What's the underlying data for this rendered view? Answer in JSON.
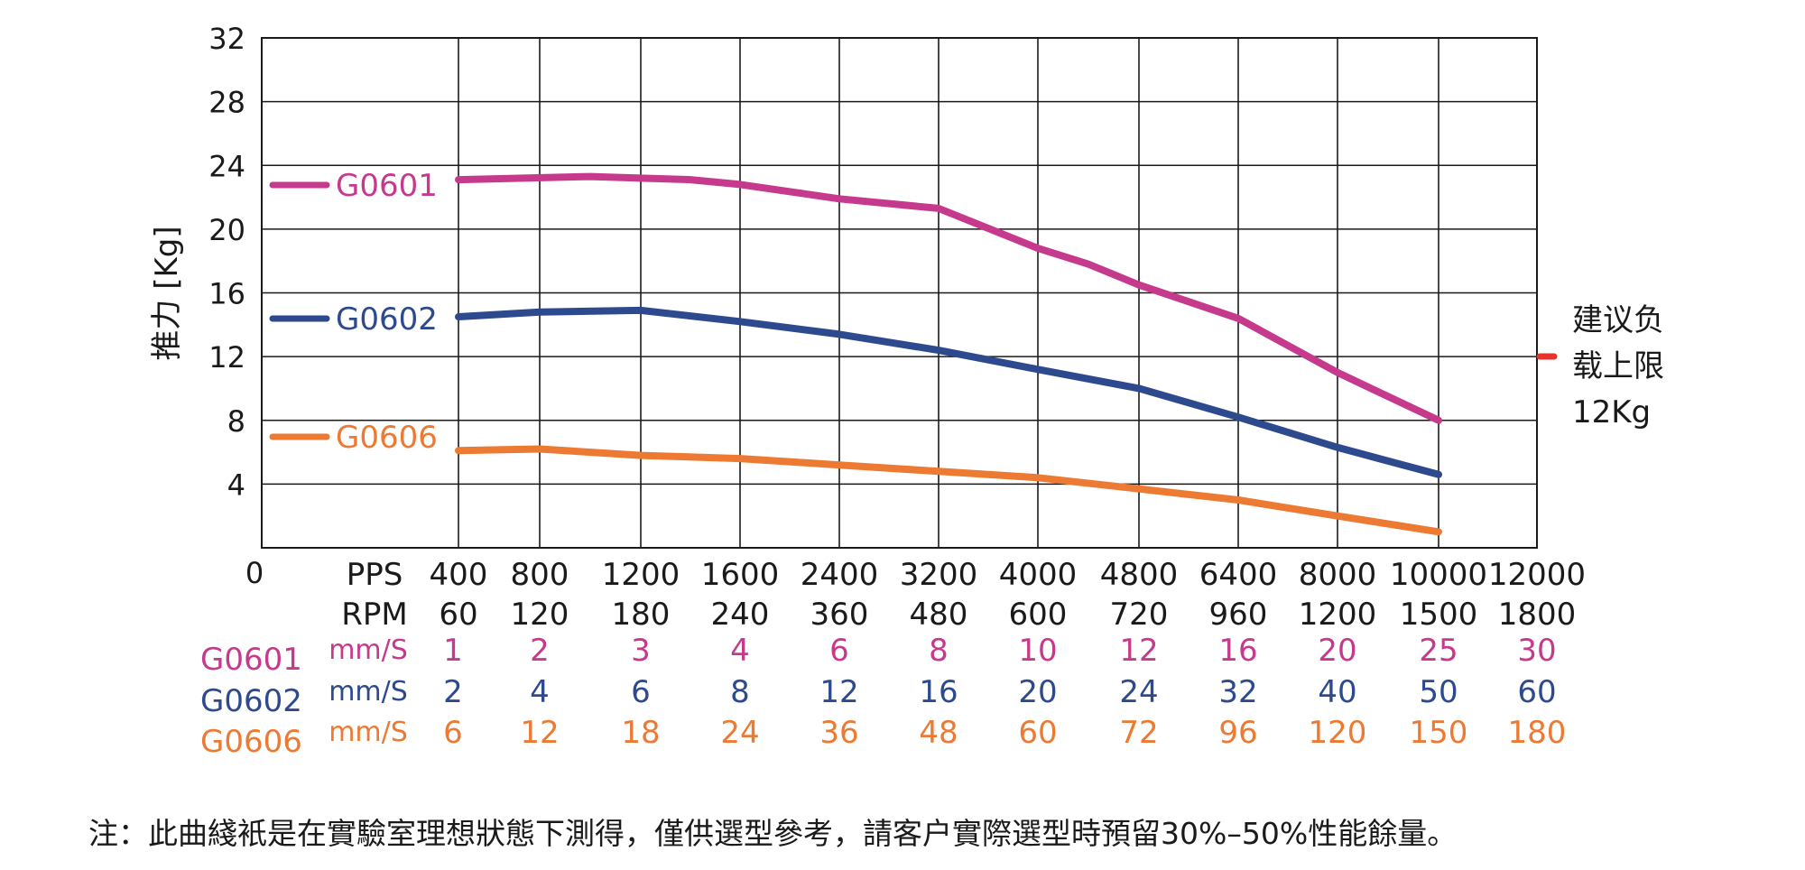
{
  "chart_data": {
    "type": "line",
    "ylabel": "推力 [Kg]",
    "ylim": [
      0,
      32
    ],
    "yticks": [
      "4",
      "8",
      "12",
      "16",
      "20",
      "24",
      "28",
      "32"
    ],
    "origin_label": "0",
    "grid": true,
    "x_pps": [
      "400",
      "800",
      "1200",
      "1600",
      "2400",
      "3200",
      "4000",
      "4800",
      "6400",
      "8000",
      "10000",
      "12000"
    ],
    "x_rpm": [
      "60",
      "120",
      "180",
      "240",
      "360",
      "480",
      "600",
      "720",
      "960",
      "1200",
      "1500",
      "1800"
    ],
    "pps_label": "PPS",
    "rpm_label": "RPM",
    "series": [
      {
        "name": "G0601",
        "color": "#C63A8E",
        "points": [
          [
            400,
            23.1
          ],
          [
            1000,
            23.3
          ],
          [
            1400,
            23.1
          ],
          [
            1600,
            22.8
          ],
          [
            2400,
            21.9
          ],
          [
            3200,
            21.3
          ],
          [
            4000,
            18.8
          ],
          [
            4400,
            17.8
          ],
          [
            4800,
            16.5
          ],
          [
            6400,
            14.4
          ],
          [
            8000,
            11.0
          ],
          [
            10000,
            8.0
          ]
        ],
        "unit": "mm/S",
        "speeds": [
          "1",
          "2",
          "3",
          "4",
          "6",
          "8",
          "10",
          "12",
          "16",
          "20",
          "25",
          "30"
        ]
      },
      {
        "name": "G0602",
        "color": "#2E4A8E",
        "points": [
          [
            400,
            14.5
          ],
          [
            800,
            14.8
          ],
          [
            1200,
            14.9
          ],
          [
            1600,
            14.2
          ],
          [
            2400,
            13.4
          ],
          [
            3200,
            12.4
          ],
          [
            4000,
            11.2
          ],
          [
            4800,
            10.0
          ],
          [
            6400,
            8.2
          ],
          [
            8000,
            6.3
          ],
          [
            10000,
            4.6
          ]
        ],
        "unit": "mm/S",
        "speeds": [
          "2",
          "4",
          "6",
          "8",
          "12",
          "16",
          "20",
          "24",
          "32",
          "40",
          "50",
          "60"
        ]
      },
      {
        "name": "G0606",
        "color": "#EC7A32",
        "points": [
          [
            400,
            6.1
          ],
          [
            800,
            6.2
          ],
          [
            1200,
            5.8
          ],
          [
            1600,
            5.6
          ],
          [
            2400,
            5.2
          ],
          [
            3200,
            4.8
          ],
          [
            4000,
            4.4
          ],
          [
            4800,
            3.7
          ],
          [
            6400,
            3.0
          ],
          [
            8000,
            2.0
          ],
          [
            10000,
            1.0
          ]
        ],
        "unit": "mm/S",
        "speeds": [
          "6",
          "12",
          "18",
          "24",
          "36",
          "48",
          "60",
          "72",
          "96",
          "120",
          "150",
          "180"
        ]
      }
    ],
    "recommended_limit": {
      "value": 12,
      "color": "#E8322B",
      "lines": [
        "建议负",
        "载上限",
        "12Kg"
      ]
    }
  },
  "note": "注：此曲綫衹是在實驗室理想狀態下測得，僅供選型參考，請客户實際選型時預留30%–50%性能餘量。"
}
